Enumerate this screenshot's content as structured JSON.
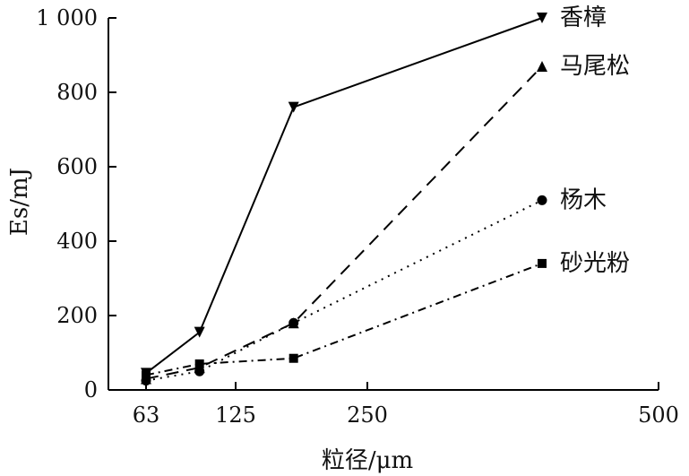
{
  "chart_data": {
    "type": "line",
    "title": "",
    "xlabel": "粒径/μm",
    "ylabel": "Es/mJ",
    "x_ticks": [
      "63",
      "125",
      "250",
      "500"
    ],
    "y_ticks": [
      "0",
      "200",
      "400",
      "600",
      "800",
      "1 000"
    ],
    "ylim": [
      0,
      1000
    ],
    "grid": false,
    "series": [
      {
        "name": "香樟",
        "marker": "triangle-down",
        "dash": "solid",
        "points": [
          {
            "x": 63,
            "y": 45
          },
          {
            "x": 100,
            "y": 155
          },
          {
            "x": 180,
            "y": 760
          },
          {
            "x": 400,
            "y": 1000
          }
        ]
      },
      {
        "name": "马尾松",
        "marker": "triangle-up",
        "dash": "dashed",
        "points": [
          {
            "x": 63,
            "y": 30
          },
          {
            "x": 100,
            "y": 60
          },
          {
            "x": 180,
            "y": 180
          },
          {
            "x": 400,
            "y": 870
          }
        ]
      },
      {
        "name": "杨木",
        "marker": "circle",
        "dash": "dotted",
        "points": [
          {
            "x": 63,
            "y": 25
          },
          {
            "x": 100,
            "y": 50
          },
          {
            "x": 180,
            "y": 180
          },
          {
            "x": 400,
            "y": 510
          }
        ]
      },
      {
        "name": "砂光粉",
        "marker": "square",
        "dash": "dash-dot",
        "points": [
          {
            "x": 63,
            "y": 40
          },
          {
            "x": 100,
            "y": 70
          },
          {
            "x": 180,
            "y": 85
          },
          {
            "x": 400,
            "y": 340
          }
        ]
      }
    ]
  }
}
